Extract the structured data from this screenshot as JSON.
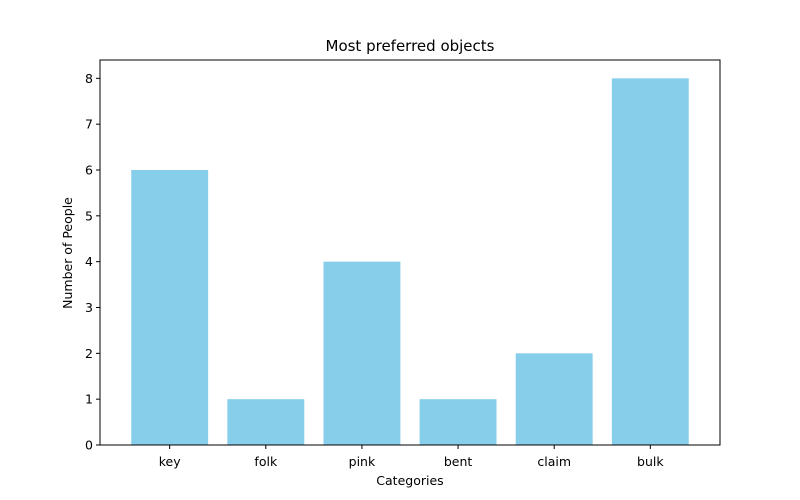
{
  "chart_data": {
    "type": "bar",
    "title": "Most preferred objects",
    "xlabel": "Categories",
    "ylabel": "Number of People",
    "categories": [
      "key",
      "folk",
      "pink",
      "bent",
      "claim",
      "bulk"
    ],
    "values": [
      6,
      1,
      4,
      1,
      2,
      8
    ],
    "ylim": [
      0,
      8.4
    ],
    "yticks": [
      0,
      1,
      2,
      3,
      4,
      5,
      6,
      7,
      8
    ],
    "bar_color": "#87ceeb",
    "grid": false,
    "legend": "none"
  }
}
